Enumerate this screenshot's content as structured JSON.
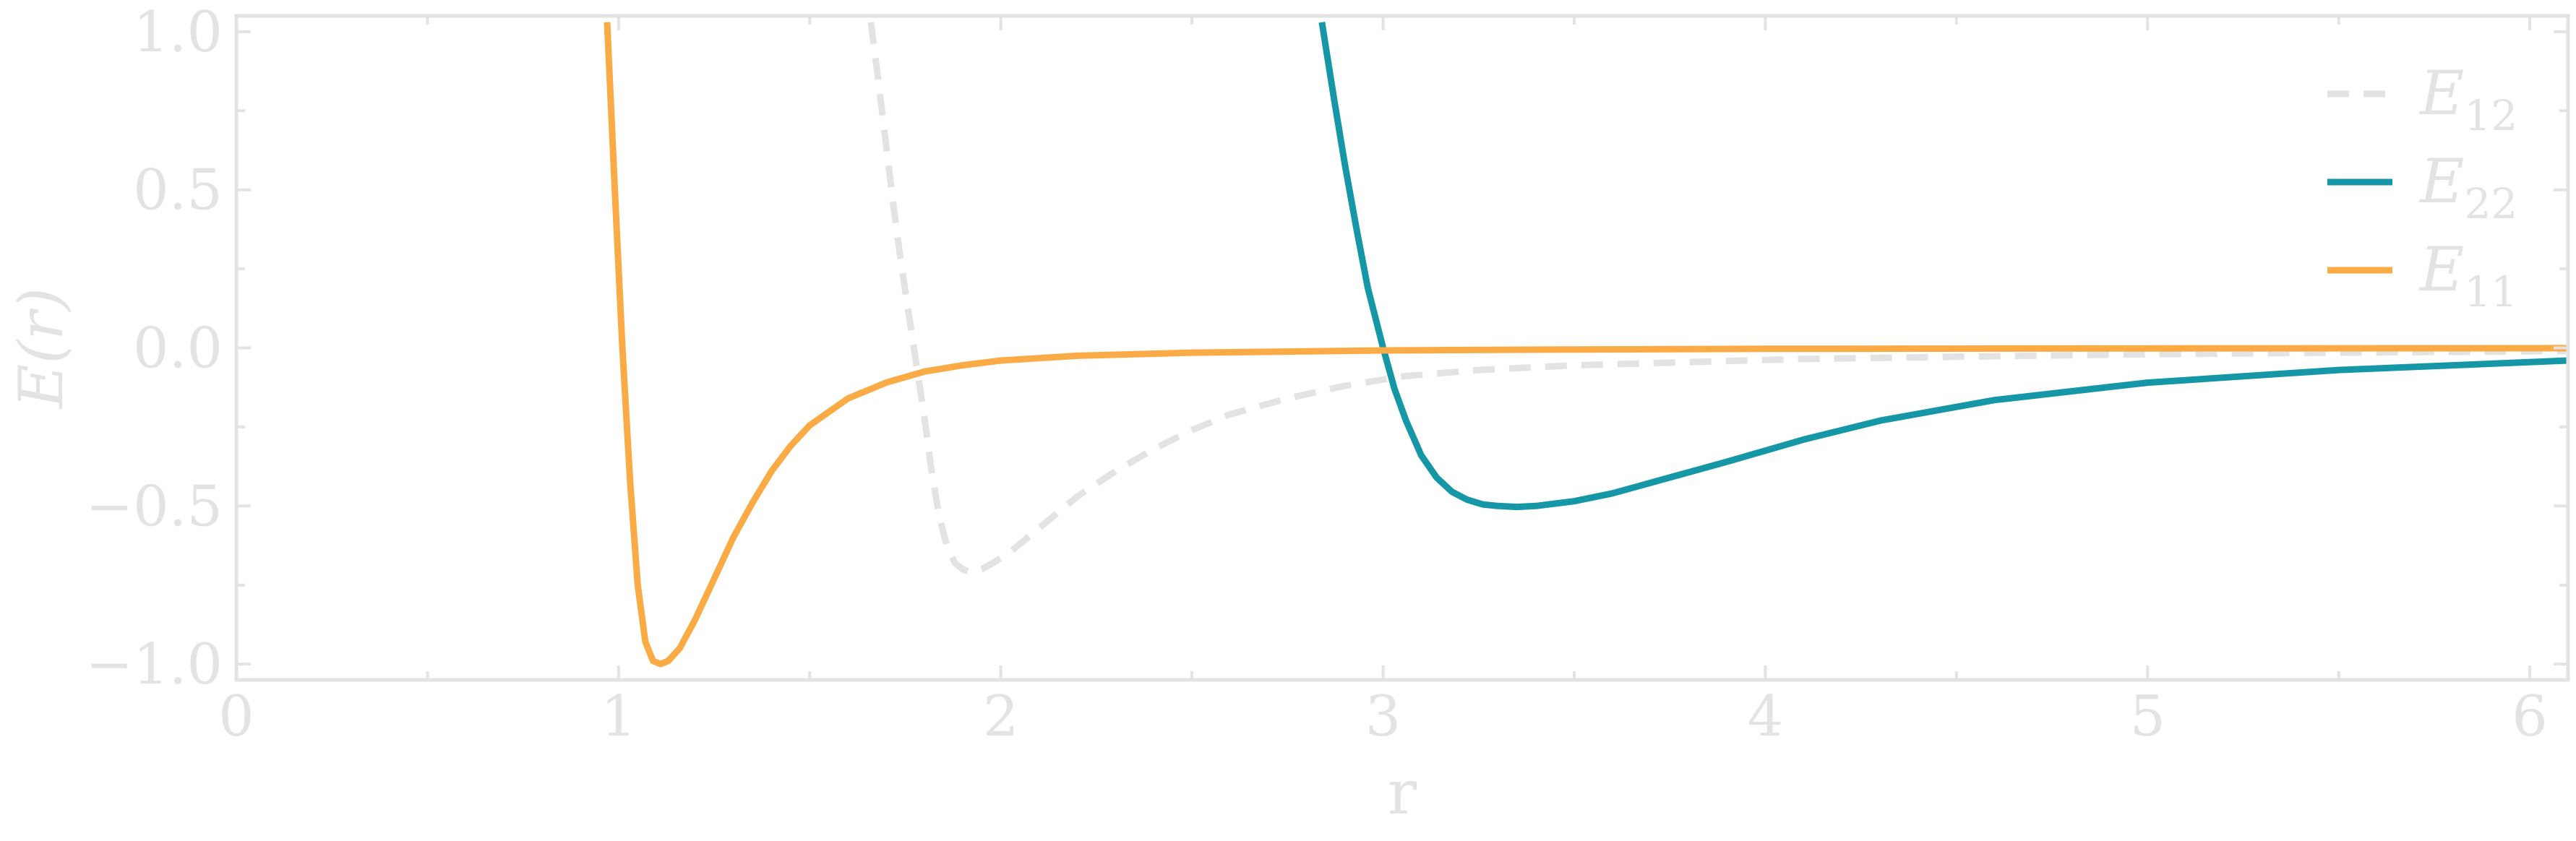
{
  "chart_data": {
    "type": "line",
    "title": "",
    "xlabel": "r",
    "ylabel": "E(r)",
    "xlim": [
      0,
      6.1
    ],
    "ylim": [
      -1.05,
      1.05
    ],
    "x_ticks": [
      0,
      1,
      2,
      3,
      4,
      5,
      6
    ],
    "x_tick_labels": [
      "0",
      "1",
      "2",
      "3",
      "4",
      "5",
      "6"
    ],
    "y_ticks": [
      -1.0,
      -0.5,
      0.0,
      0.5,
      1.0
    ],
    "y_tick_labels": [
      "−1.0",
      "−0.5",
      "0.0",
      "0.5",
      "1.0"
    ],
    "grid": false,
    "legend_position": "top-right",
    "colors": {
      "axis": "#e3e3e3"
    },
    "series": [
      {
        "name": "E12",
        "label_main": "E",
        "label_sub": "12",
        "color": "#e3e3e3",
        "dash": true,
        "x": [
          1.66,
          1.68,
          1.7,
          1.72,
          1.74,
          1.76,
          1.78,
          1.8,
          1.82,
          1.84,
          1.86,
          1.88,
          1.9,
          1.92,
          1.95,
          1.98,
          2.02,
          2.06,
          2.1,
          2.15,
          2.2,
          2.3,
          2.4,
          2.5,
          2.6,
          2.75,
          2.9,
          3.05,
          3.25,
          3.5,
          3.8,
          4.1,
          4.5,
          5.0,
          5.5,
          6.1
        ],
        "values": [
          1.03,
          0.84,
          0.64,
          0.44,
          0.26,
          0.1,
          -0.06,
          -0.22,
          -0.4,
          -0.54,
          -0.63,
          -0.68,
          -0.7,
          -0.71,
          -0.7,
          -0.68,
          -0.65,
          -0.61,
          -0.57,
          -0.52,
          -0.47,
          -0.39,
          -0.32,
          -0.26,
          -0.21,
          -0.16,
          -0.12,
          -0.09,
          -0.07,
          -0.055,
          -0.045,
          -0.035,
          -0.028,
          -0.02,
          -0.015,
          -0.01
        ]
      },
      {
        "name": "E22",
        "label_main": "E",
        "label_sub": "22",
        "color": "#1597a8",
        "dash": false,
        "x": [
          2.84,
          2.87,
          2.9,
          2.93,
          2.96,
          3.0,
          3.03,
          3.06,
          3.1,
          3.14,
          3.18,
          3.22,
          3.26,
          3.3,
          3.35,
          3.4,
          3.5,
          3.6,
          3.75,
          3.9,
          4.1,
          4.3,
          4.6,
          5.0,
          5.5,
          6.1
        ],
        "values": [
          1.03,
          0.8,
          0.58,
          0.38,
          0.19,
          0.0,
          -0.13,
          -0.23,
          -0.34,
          -0.41,
          -0.455,
          -0.48,
          -0.495,
          -0.5,
          -0.503,
          -0.5,
          -0.485,
          -0.46,
          -0.41,
          -0.36,
          -0.29,
          -0.23,
          -0.165,
          -0.11,
          -0.07,
          -0.04
        ]
      },
      {
        "name": "E11",
        "label_main": "E",
        "label_sub": "11",
        "color": "#fbab46",
        "dash": false,
        "x": [
          0.97,
          0.99,
          1.01,
          1.03,
          1.05,
          1.07,
          1.09,
          1.11,
          1.13,
          1.16,
          1.2,
          1.25,
          1.3,
          1.35,
          1.4,
          1.45,
          1.5,
          1.6,
          1.7,
          1.8,
          1.9,
          2.0,
          2.2,
          2.5,
          3.0,
          3.5,
          4.0,
          5.0,
          6.1
        ],
        "values": [
          1.03,
          0.5,
          0.0,
          -0.42,
          -0.75,
          -0.93,
          -0.99,
          -1.0,
          -0.99,
          -0.95,
          -0.86,
          -0.73,
          -0.6,
          -0.49,
          -0.39,
          -0.31,
          -0.245,
          -0.16,
          -0.11,
          -0.075,
          -0.055,
          -0.04,
          -0.025,
          -0.015,
          -0.008,
          -0.005,
          -0.003,
          -0.0015,
          -0.001
        ]
      }
    ]
  }
}
